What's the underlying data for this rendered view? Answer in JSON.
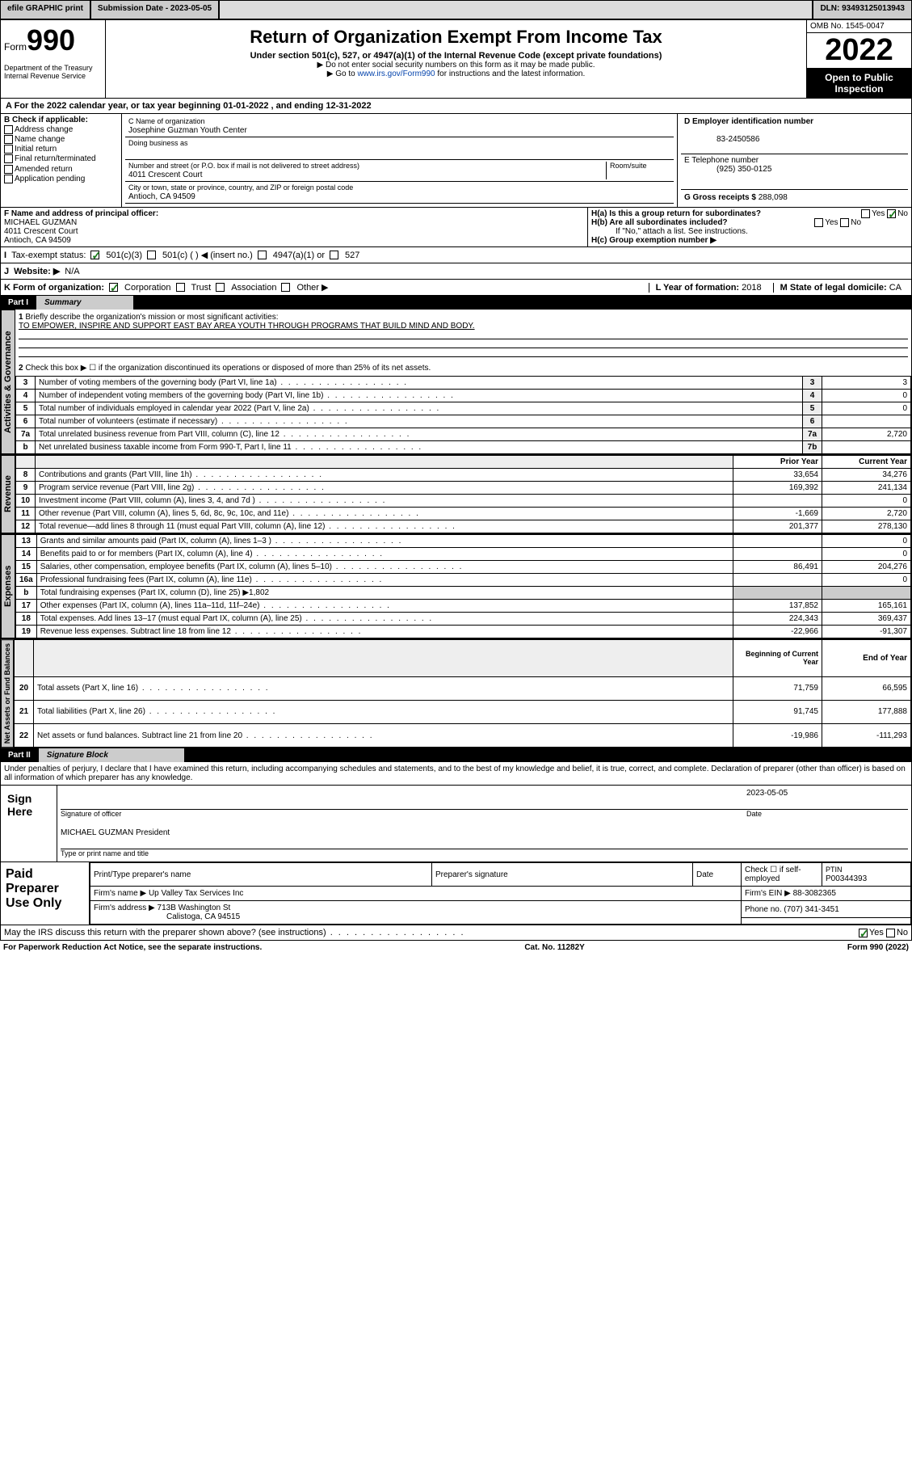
{
  "topbar": {
    "efile": "efile GRAPHIC print",
    "sub_lbl": "Submission Date - ",
    "sub_val": "2023-05-05",
    "dln_lbl": "DLN: ",
    "dln_val": "93493125013943"
  },
  "hdr": {
    "form_word": "Form",
    "form_num": "990",
    "dept": "Department of the Treasury\nInternal Revenue Service",
    "title": "Return of Organization Exempt From Income Tax",
    "sub": "Under section 501(c), 527, or 4947(a)(1) of the Internal Revenue Code (except private foundations)",
    "note1": "▶ Do not enter social security numbers on this form as it may be made public.",
    "note2": "▶ Go to ",
    "link": "www.irs.gov/Form990",
    "note2b": " for instructions and the latest information.",
    "omb": "OMB No. 1545-0047",
    "year": "2022",
    "open1": "Open to Public",
    "open2": "Inspection"
  },
  "A": {
    "text": "For the 2022 calendar year, or tax year beginning ",
    "begin": "01-01-2022",
    "mid": " , and ending ",
    "end": "12-31-2022"
  },
  "B": {
    "hdr": "B Check if applicable:",
    "opts": [
      "Address change",
      "Name change",
      "Initial return",
      "Final return/terminated",
      "Amended return",
      "Application pending"
    ]
  },
  "C": {
    "name_lbl": "C Name of organization",
    "name": "Josephine Guzman Youth Center",
    "dba_lbl": "Doing business as",
    "dba": "",
    "addr_lbl": "Number and street (or P.O. box if mail is not delivered to street address)",
    "room_lbl": "Room/suite",
    "addr": "4011 Crescent Court",
    "city_lbl": "City or town, state or province, country, and ZIP or foreign postal code",
    "city": "Antioch, CA  94509"
  },
  "D": {
    "lbl": "D Employer identification number",
    "val": "83-2450586"
  },
  "E": {
    "lbl": "E Telephone number",
    "val": "(925) 350-0125"
  },
  "G": {
    "lbl": "G Gross receipts $ ",
    "val": "288,098"
  },
  "F": {
    "lbl": "F  Name and address of principal officer:",
    "name": "MICHAEL GUZMAN",
    "addr": "4011 Crescent Court",
    "city": "Antioch, CA  94509"
  },
  "H": {
    "a": "H(a)  Is this a group return for subordinates?",
    "a_yes": "Yes",
    "a_no": "No",
    "b": "H(b)  Are all subordinates included?",
    "b_yes": "Yes",
    "b_no": "No",
    "b_note": "If \"No,\" attach a list. See instructions.",
    "c": "H(c)  Group exemption number ▶"
  },
  "I": {
    "lbl": "Tax-exempt status:",
    "opts": [
      "501(c)(3)",
      "501(c) (  ) ◀ (insert no.)",
      "4947(a)(1) or",
      "527"
    ]
  },
  "J": {
    "lbl": "Website: ▶",
    "val": "N/A"
  },
  "K": {
    "lbl": "K Form of organization:",
    "opts": [
      "Corporation",
      "Trust",
      "Association",
      "Other ▶"
    ]
  },
  "L": {
    "lbl": "L Year of formation: ",
    "val": "2018"
  },
  "M": {
    "lbl": "M State of legal domicile: ",
    "val": "CA"
  },
  "part1": {
    "num": "Part I",
    "title": "Summary"
  },
  "gov": {
    "tab": "Activities & Governance",
    "q1": "Briefly describe the organization's mission or most significant activities:",
    "mission": "TO EMPOWER, INSPIRE AND SUPPORT EAST BAY AREA YOUTH THROUGH PROGRAMS THAT BUILD MIND AND BODY.",
    "q2": "Check this box ▶ ☐  if the organization discontinued its operations or disposed of more than 25% of its net assets.",
    "rows": [
      {
        "n": "3",
        "t": "Number of voting members of the governing body (Part VI, line 1a)",
        "box": "3",
        "v": "3"
      },
      {
        "n": "4",
        "t": "Number of independent voting members of the governing body (Part VI, line 1b)",
        "box": "4",
        "v": "0"
      },
      {
        "n": "5",
        "t": "Total number of individuals employed in calendar year 2022 (Part V, line 2a)",
        "box": "5",
        "v": "0"
      },
      {
        "n": "6",
        "t": "Total number of volunteers (estimate if necessary)",
        "box": "6",
        "v": ""
      },
      {
        "n": "7a",
        "t": "Total unrelated business revenue from Part VIII, column (C), line 12",
        "box": "7a",
        "v": "2,720"
      },
      {
        "n": "b",
        "t": "Net unrelated business taxable income from Form 990-T, Part I, line 11",
        "box": "7b",
        "v": ""
      }
    ]
  },
  "rev": {
    "tab": "Revenue",
    "prior": "Prior Year",
    "curr": "Current Year",
    "rows": [
      {
        "n": "8",
        "t": "Contributions and grants (Part VIII, line 1h)",
        "p": "33,654",
        "c": "34,276"
      },
      {
        "n": "9",
        "t": "Program service revenue (Part VIII, line 2g)",
        "p": "169,392",
        "c": "241,134"
      },
      {
        "n": "10",
        "t": "Investment income (Part VIII, column (A), lines 3, 4, and 7d )",
        "p": "",
        "c": "0"
      },
      {
        "n": "11",
        "t": "Other revenue (Part VIII, column (A), lines 5, 6d, 8c, 9c, 10c, and 11e)",
        "p": "-1,669",
        "c": "2,720"
      },
      {
        "n": "12",
        "t": "Total revenue—add lines 8 through 11 (must equal Part VIII, column (A), line 12)",
        "p": "201,377",
        "c": "278,130"
      }
    ]
  },
  "exp": {
    "tab": "Expenses",
    "rows": [
      {
        "n": "13",
        "t": "Grants and similar amounts paid (Part IX, column (A), lines 1–3 )",
        "p": "",
        "c": "0"
      },
      {
        "n": "14",
        "t": "Benefits paid to or for members (Part IX, column (A), line 4)",
        "p": "",
        "c": "0"
      },
      {
        "n": "15",
        "t": "Salaries, other compensation, employee benefits (Part IX, column (A), lines 5–10)",
        "p": "86,491",
        "c": "204,276"
      },
      {
        "n": "16a",
        "t": "Professional fundraising fees (Part IX, column (A), line 11e)",
        "p": "",
        "c": "0"
      },
      {
        "n": "b",
        "t": "Total fundraising expenses (Part IX, column (D), line 25) ▶1,802",
        "p": null,
        "c": null
      },
      {
        "n": "17",
        "t": "Other expenses (Part IX, column (A), lines 11a–11d, 11f–24e)",
        "p": "137,852",
        "c": "165,161"
      },
      {
        "n": "18",
        "t": "Total expenses. Add lines 13–17 (must equal Part IX, column (A), line 25)",
        "p": "224,343",
        "c": "369,437"
      },
      {
        "n": "19",
        "t": "Revenue less expenses. Subtract line 18 from line 12",
        "p": "-22,966",
        "c": "-91,307"
      }
    ]
  },
  "net": {
    "tab": "Net Assets or Fund Balances",
    "begin": "Beginning of Current Year",
    "end": "End of Year",
    "rows": [
      {
        "n": "20",
        "t": "Total assets (Part X, line 16)",
        "p": "71,759",
        "c": "66,595"
      },
      {
        "n": "21",
        "t": "Total liabilities (Part X, line 26)",
        "p": "91,745",
        "c": "177,888"
      },
      {
        "n": "22",
        "t": "Net assets or fund balances. Subtract line 21 from line 20",
        "p": "-19,986",
        "c": "-111,293"
      }
    ]
  },
  "part2": {
    "num": "Part II",
    "title": "Signature Block",
    "decl": "Under penalties of perjury, I declare that I have examined this return, including accompanying schedules and statements, and to the best of my knowledge and belief, it is true, correct, and complete. Declaration of preparer (other than officer) is based on all information of which preparer has any knowledge."
  },
  "sign": {
    "here": "Sign Here",
    "sig_lbl": "Signature of officer",
    "date_lbl": "Date",
    "date": "2023-05-05",
    "name": "MICHAEL GUZMAN President",
    "name_lbl": "Type or print name and title"
  },
  "prep": {
    "here": "Paid Preparer Use Only",
    "cols": [
      "Print/Type preparer's name",
      "Preparer's signature",
      "Date"
    ],
    "chk": "Check ☐ if self-employed",
    "ptin_lbl": "PTIN",
    "ptin": "P00344393",
    "firm_lbl": "Firm's name    ▶",
    "firm": "Up Valley Tax Services Inc",
    "ein_lbl": "Firm's EIN ▶",
    "ein": "88-3082365",
    "addr_lbl": "Firm's address ▶",
    "addr": "713B Washington St",
    "city": "Calistoga, CA  94515",
    "phone_lbl": "Phone no. ",
    "phone": "(707) 341-3451"
  },
  "discuss": {
    "q": "May the IRS discuss this return with the preparer shown above? (see instructions)",
    "yes": "Yes",
    "no": "No"
  },
  "footer": {
    "l": "For Paperwork Reduction Act Notice, see the separate instructions.",
    "c": "Cat. No. 11282Y",
    "r": "Form 990 (2022)"
  }
}
